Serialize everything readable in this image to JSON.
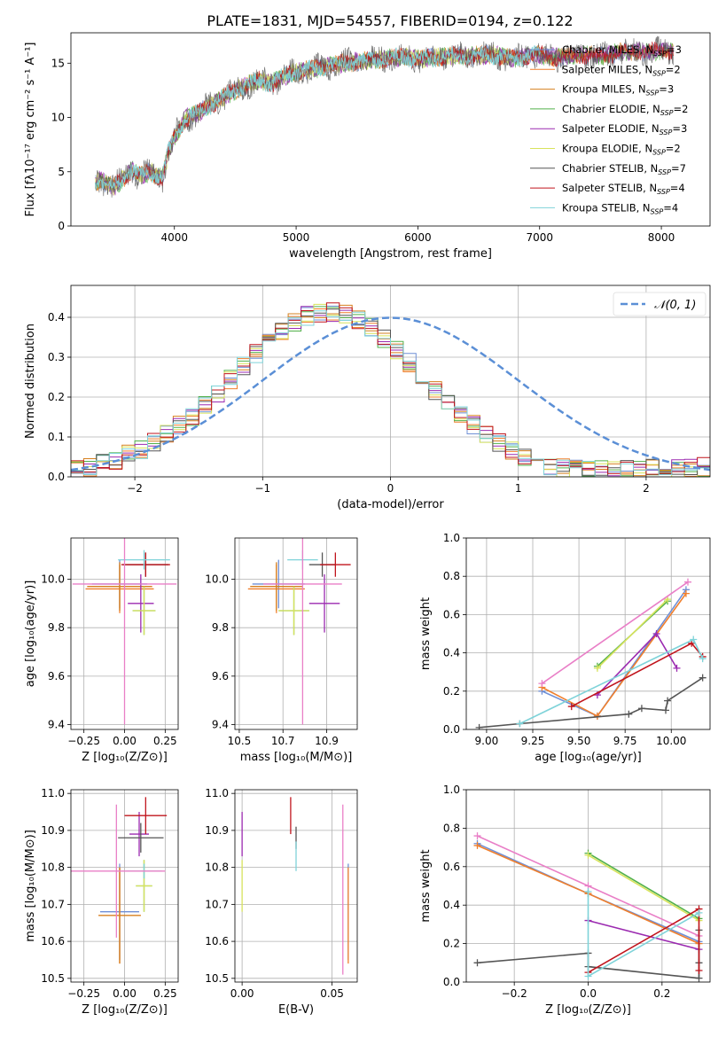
{
  "figure": {
    "title": "PLATE=1831, MJD=54557, FIBERID=0194, z=0.122"
  },
  "colors": {
    "Chabrier MILES": "#6f8fd6",
    "Salpeter MILES": "#f07f2c",
    "Kroupa MILES": "#d6801f",
    "Chabrier ELODIE": "#52b04a",
    "Salpeter ELODIE": "#9b2ab0",
    "Kroupa ELODIE": "#d8e35c",
    "Chabrier STELIB": "#555555",
    "Salpeter STELIB": "#c0141c",
    "Kroupa STELIB": "#7fd3d9",
    "extra": "#e97fc7",
    "normal": "#5b8fd6"
  },
  "chart_data": [
    {
      "id": "spectrum",
      "type": "line",
      "xlabel": "wavelength [Angstrom, rest frame]",
      "ylabel": "Flux [fλ10⁻¹⁷ erg cm⁻² s⁻¹ A⁻¹]",
      "xlim": [
        3150,
        8400
      ],
      "ylim": [
        0,
        17.8
      ],
      "xticks": [
        4000,
        5000,
        6000,
        7000,
        8000
      ],
      "yticks": [
        0,
        5,
        10,
        15
      ],
      "x": [
        3350,
        3400,
        3500,
        3600,
        3650,
        3700,
        3800,
        3900,
        3950,
        4000,
        4100,
        4200,
        4300,
        4400,
        4500,
        4600,
        4700,
        4800,
        4900,
        5000,
        5100,
        5200,
        5300,
        5400,
        5500,
        5600,
        5700,
        5800,
        5900,
        6000,
        6100,
        6200,
        6300,
        6400,
        6500,
        6600,
        6700,
        6800,
        6900,
        7000,
        7100,
        7200,
        7300,
        7400,
        7500,
        7600,
        7700,
        7800,
        7900,
        8000,
        8100
      ],
      "y": [
        4.0,
        4.2,
        3.6,
        4.6,
        5.2,
        4.7,
        5.0,
        4.4,
        6.8,
        8.2,
        10.0,
        10.4,
        11.2,
        11.8,
        12.5,
        13.0,
        13.4,
        13.2,
        13.8,
        14.2,
        14.4,
        14.6,
        14.8,
        15.0,
        15.2,
        15.3,
        15.4,
        15.5,
        15.6,
        15.4,
        15.5,
        15.6,
        15.7,
        15.6,
        15.7,
        15.8,
        15.6,
        15.5,
        15.7,
        15.8,
        15.6,
        15.5,
        15.8,
        15.7,
        15.6,
        15.9,
        16.0,
        16.1,
        16.0,
        16.2,
        16.0
      ],
      "series": [
        {
          "name": "Chabrier MILES, N_SSP=3"
        },
        {
          "name": "Salpeter MILES, N_SSP=2"
        },
        {
          "name": "Kroupa MILES, N_SSP=3"
        },
        {
          "name": "Chabrier ELODIE, N_SSP=2"
        },
        {
          "name": "Salpeter ELODIE, N_SSP=3"
        },
        {
          "name": "Kroupa ELODIE, N_SSP=2"
        },
        {
          "name": "Chabrier STELIB, N_SSP=7"
        },
        {
          "name": "Salpeter STELIB, N_SSP=4"
        },
        {
          "name": "Kroupa STELIB, N_SSP=4"
        }
      ],
      "legend_labels": [
        {
          "pre": "Chabrier MILES, N",
          "sub": "SSP",
          "post": "=3"
        },
        {
          "pre": "Salpeter MILES, N",
          "sub": "SSP",
          "post": "=2"
        },
        {
          "pre": "Kroupa MILES, N",
          "sub": "SSP",
          "post": "=3"
        },
        {
          "pre": "Chabrier ELODIE, N",
          "sub": "SSP",
          "post": "=2"
        },
        {
          "pre": "Salpeter ELODIE, N",
          "sub": "SSP",
          "post": "=3"
        },
        {
          "pre": "Kroupa ELODIE, N",
          "sub": "SSP",
          "post": "=2"
        },
        {
          "pre": "Chabrier STELIB, N",
          "sub": "SSP",
          "post": "=7"
        },
        {
          "pre": "Salpeter STELIB, N",
          "sub": "SSP",
          "post": "=4"
        },
        {
          "pre": "Kroupa STELIB, N",
          "sub": "SSP",
          "post": "=4"
        }
      ],
      "legend": "top-right",
      "grid": false
    },
    {
      "id": "residuals",
      "type": "histogram",
      "xlabel": "(data-model)/error",
      "ylabel": "Normed distribution",
      "xlim": [
        -2.5,
        2.5
      ],
      "ylim": [
        0,
        0.48
      ],
      "xticks": [
        -2,
        -1,
        0,
        1,
        2
      ],
      "yticks": [
        0.0,
        0.1,
        0.2,
        0.3,
        0.4
      ],
      "bin_width": 0.1,
      "bin_start": -2.5,
      "density": [
        0.022,
        0.027,
        0.034,
        0.043,
        0.055,
        0.069,
        0.086,
        0.106,
        0.128,
        0.153,
        0.181,
        0.211,
        0.243,
        0.276,
        0.308,
        0.339,
        0.365,
        0.387,
        0.403,
        0.412,
        0.413,
        0.407,
        0.394,
        0.374,
        0.349,
        0.319,
        0.286,
        0.253,
        0.219,
        0.186,
        0.157,
        0.129,
        0.105,
        0.083,
        0.066,
        0.051,
        0.039,
        0.03,
        0.025,
        0.022,
        0.02,
        0.019,
        0.018,
        0.018,
        0.019,
        0.02,
        0.021,
        0.022,
        0.023,
        0.024
      ],
      "normal_label": "𝒩(0, 1)",
      "legend": "top-right",
      "grid": true
    },
    {
      "id": "age_vs_Z",
      "type": "scatter",
      "xlabel": "Z [log₁₀(Z/Z⊙)]",
      "ylabel": "age  [log₁₀(age/yr)]",
      "xlim": [
        -0.33,
        0.33
      ],
      "ylim": [
        9.38,
        10.17
      ],
      "xticks": [
        -0.25,
        0.0,
        0.25
      ],
      "yticks": [
        9.4,
        9.6,
        9.8,
        10.0
      ],
      "points": [
        {
          "series": "Chabrier MILES",
          "x": -0.03,
          "y": 9.98,
          "xerr": 0.17,
          "yerr": 0.1
        },
        {
          "series": "Salpeter MILES",
          "x": -0.03,
          "y": 9.96,
          "xerr": 0.21,
          "yerr": 0.1
        },
        {
          "series": "Kroupa MILES",
          "x": -0.03,
          "y": 9.97,
          "xerr": 0.2,
          "yerr": 0.1
        },
        {
          "series": "Chabrier ELODIE",
          "x": 0.12,
          "y": 9.87,
          "xerr": 0.07,
          "yerr": 0.1
        },
        {
          "series": "Salpeter ELODIE",
          "x": 0.1,
          "y": 9.9,
          "xerr": 0.08,
          "yerr": 0.12
        },
        {
          "series": "Kroupa ELODIE",
          "x": 0.12,
          "y": 9.87,
          "xerr": 0.07,
          "yerr": 0.1
        },
        {
          "series": "Chabrier STELIB",
          "x": 0.13,
          "y": 10.06,
          "xerr": 0.14,
          "yerr": 0.05
        },
        {
          "series": "Salpeter STELIB",
          "x": 0.13,
          "y": 10.06,
          "xerr": 0.15,
          "yerr": 0.05
        },
        {
          "series": "Kroupa STELIB",
          "x": 0.12,
          "y": 10.08,
          "xerr": 0.16,
          "yerr": 0.04
        },
        {
          "series": "extra",
          "x": 0.0,
          "y": 9.98,
          "xerr": 0.32,
          "yerr": 0.58
        }
      ],
      "grid": true
    },
    {
      "id": "age_vs_mass",
      "type": "scatter",
      "xlabel": "mass [log₁₀(M/M⊙)]",
      "ylabel": "",
      "xlim": [
        10.48,
        11.04
      ],
      "ylim": [
        9.38,
        10.17
      ],
      "xticks": [
        10.5,
        10.7,
        10.9
      ],
      "yticks": [
        9.4,
        9.6,
        9.8,
        10.0
      ],
      "points": [
        {
          "series": "Chabrier MILES",
          "x": 10.68,
          "y": 9.98,
          "xerr": 0.12,
          "yerr": 0.1
        },
        {
          "series": "Salpeter MILES",
          "x": 10.67,
          "y": 9.96,
          "xerr": 0.13,
          "yerr": 0.1
        },
        {
          "series": "Kroupa MILES",
          "x": 10.67,
          "y": 9.97,
          "xerr": 0.12,
          "yerr": 0.1
        },
        {
          "series": "Chabrier ELODIE",
          "x": 10.75,
          "y": 9.87,
          "xerr": 0.07,
          "yerr": 0.1
        },
        {
          "series": "Salpeter ELODIE",
          "x": 10.89,
          "y": 9.9,
          "xerr": 0.07,
          "yerr": 0.12
        },
        {
          "series": "Kroupa ELODIE",
          "x": 10.75,
          "y": 9.87,
          "xerr": 0.07,
          "yerr": 0.1
        },
        {
          "series": "Chabrier STELIB",
          "x": 10.88,
          "y": 10.06,
          "xerr": 0.06,
          "yerr": 0.05
        },
        {
          "series": "Salpeter STELIB",
          "x": 10.94,
          "y": 10.06,
          "xerr": 0.07,
          "yerr": 0.05
        },
        {
          "series": "Kroupa STELIB",
          "x": 10.79,
          "y": 10.08,
          "xerr": 0.07,
          "yerr": 0.04
        },
        {
          "series": "extra",
          "x": 10.79,
          "y": 9.98,
          "xerr": 0.18,
          "yerr": 0.58
        }
      ],
      "grid": true
    },
    {
      "id": "mass_weight_vs_age",
      "type": "line",
      "xlabel": "age  [log₁₀(age/yr)]",
      "ylabel": "mass weight",
      "xlim": [
        8.89,
        10.21
      ],
      "ylim": [
        0,
        1.0
      ],
      "xticks": [
        9.0,
        9.25,
        9.5,
        9.75,
        10.0
      ],
      "yticks": [
        0.0,
        0.2,
        0.4,
        0.6,
        0.8,
        1.0
      ],
      "series": [
        {
          "series": "Chabrier MILES",
          "x": [
            9.3,
            9.6,
            10.08
          ],
          "y": [
            0.2,
            0.07,
            0.73
          ]
        },
        {
          "series": "Salpeter MILES",
          "x": [
            9.3,
            9.6,
            10.08
          ],
          "y": [
            0.22,
            0.07,
            0.71
          ]
        },
        {
          "series": "Chabrier ELODIE",
          "x": [
            9.6,
            9.98
          ],
          "y": [
            0.33,
            0.67
          ]
        },
        {
          "series": "Kroupa ELODIE",
          "x": [
            9.6,
            9.98
          ],
          "y": [
            0.32,
            0.68
          ]
        },
        {
          "series": "Salpeter ELODIE",
          "x": [
            9.6,
            9.92,
            10.03
          ],
          "y": [
            0.18,
            0.5,
            0.32
          ]
        },
        {
          "series": "Chabrier STELIB",
          "x": [
            8.96,
            9.18,
            9.77,
            9.84,
            9.97,
            9.98,
            10.17
          ],
          "y": [
            0.01,
            0.03,
            0.08,
            0.11,
            0.1,
            0.15,
            0.27
          ]
        },
        {
          "series": "Salpeter STELIB",
          "x": [
            9.46,
            10.11,
            10.17
          ],
          "y": [
            0.12,
            0.45,
            0.38
          ]
        },
        {
          "series": "Kroupa STELIB",
          "x": [
            9.18,
            10.12,
            10.17
          ],
          "y": [
            0.03,
            0.47,
            0.37
          ]
        },
        {
          "series": "extra",
          "x": [
            9.3,
            10.09
          ],
          "y": [
            0.24,
            0.77
          ]
        }
      ],
      "grid": true
    },
    {
      "id": "mass_vs_Z",
      "type": "scatter",
      "xlabel": "Z [log₁₀(Z/Z⊙)]",
      "ylabel": "mass [log₁₀(M/M⊙)]",
      "xlim": [
        -0.33,
        0.33
      ],
      "ylim": [
        10.49,
        11.01
      ],
      "xticks": [
        -0.25,
        0.0,
        0.25
      ],
      "yticks": [
        10.5,
        10.6,
        10.7,
        10.8,
        10.9,
        11.0
      ],
      "points": [
        {
          "series": "Chabrier MILES",
          "x": -0.03,
          "y": 10.68,
          "xerr": 0.12,
          "yerr": 0.13
        },
        {
          "series": "Salpeter MILES",
          "x": -0.03,
          "y": 10.67,
          "xerr": 0.13,
          "yerr": 0.13
        },
        {
          "series": "Kroupa MILES",
          "x": -0.03,
          "y": 10.67,
          "xerr": 0.13,
          "yerr": 0.13
        },
        {
          "series": "Chabrier ELODIE",
          "x": 0.12,
          "y": 10.75,
          "xerr": 0.05,
          "yerr": 0.07
        },
        {
          "series": "Salpeter ELODIE",
          "x": 0.09,
          "y": 10.89,
          "xerr": 0.06,
          "yerr": 0.06
        },
        {
          "series": "Kroupa ELODIE",
          "x": 0.12,
          "y": 10.75,
          "xerr": 0.05,
          "yerr": 0.07
        },
        {
          "series": "Chabrier STELIB",
          "x": 0.1,
          "y": 10.88,
          "xerr": 0.14,
          "yerr": 0.04
        },
        {
          "series": "Salpeter STELIB",
          "x": 0.13,
          "y": 10.94,
          "xerr": 0.13,
          "yerr": 0.05
        },
        {
          "series": "Kroupa STELIB",
          "x": 0.12,
          "y": 10.79,
          "xerr": 0.11,
          "yerr": 0.02
        },
        {
          "series": "extra",
          "x": -0.05,
          "y": 10.79,
          "xerr": 0.3,
          "yerr": 0.18
        }
      ],
      "grid": true
    },
    {
      "id": "mass_vs_ebv",
      "type": "scatter",
      "xlabel": "E(B-V)",
      "ylabel": "",
      "xlim": [
        -0.004,
        0.064
      ],
      "ylim": [
        10.49,
        11.01
      ],
      "xticks": [
        0.0,
        0.05
      ],
      "yticks": [
        10.5,
        10.6,
        10.7,
        10.8,
        10.9,
        11.0
      ],
      "points": [
        {
          "series": "Chabrier MILES",
          "x": 0.059,
          "y": 10.68,
          "xerr": 0.0,
          "yerr": 0.13
        },
        {
          "series": "Salpeter MILES",
          "x": 0.059,
          "y": 10.67,
          "xerr": 0.0,
          "yerr": 0.13
        },
        {
          "series": "Kroupa ELODIE",
          "x": 0.0,
          "y": 10.75,
          "xerr": 0.0,
          "yerr": 0.07
        },
        {
          "series": "Salpeter ELODIE",
          "x": 0.0,
          "y": 10.89,
          "xerr": 0.0,
          "yerr": 0.06
        },
        {
          "series": "Chabrier STELIB",
          "x": 0.03,
          "y": 10.88,
          "xerr": 0.0,
          "yerr": 0.03
        },
        {
          "series": "Salpeter STELIB",
          "x": 0.027,
          "y": 10.94,
          "xerr": 0.0,
          "yerr": 0.05
        },
        {
          "series": "Kroupa STELIB",
          "x": 0.03,
          "y": 10.83,
          "xerr": 0.0,
          "yerr": 0.04
        },
        {
          "series": "extra",
          "x": 0.056,
          "y": 10.74,
          "xerr": 0.0,
          "yerr": 0.23
        }
      ],
      "grid": true
    },
    {
      "id": "mass_weight_vs_Z",
      "type": "line",
      "xlabel": "Z [log₁₀(Z/Z⊙)]",
      "ylabel": "mass weight",
      "xlim": [
        -0.33,
        0.33
      ],
      "ylim": [
        0,
        1.0
      ],
      "xticks": [
        -0.2,
        0.0,
        0.2
      ],
      "yticks": [
        0.0,
        0.2,
        0.4,
        0.6,
        0.8,
        1.0
      ],
      "series": [
        {
          "series": "Chabrier MILES",
          "x": [
            -0.3,
            0.0,
            0.3
          ],
          "y": [
            0.72,
            0.46,
            0.21
          ]
        },
        {
          "series": "Salpeter MILES",
          "x": [
            -0.3,
            0.0,
            0.3
          ],
          "y": [
            0.71,
            0.46,
            0.2
          ]
        },
        {
          "series": "extra",
          "x": [
            -0.3,
            0.0,
            0.3
          ],
          "y": [
            0.76,
            0.5,
            0.24
          ]
        },
        {
          "series": "Chabrier ELODIE",
          "x": [
            0.0,
            0.3
          ],
          "y": [
            0.67,
            0.33
          ]
        },
        {
          "series": "Kroupa ELODIE",
          "x": [
            0.0,
            0.3
          ],
          "y": [
            0.66,
            0.32
          ]
        },
        {
          "series": "Salpeter ELODIE",
          "x": [
            0.0,
            0.3
          ],
          "y": [
            0.32,
            0.17
          ]
        },
        {
          "series": "Chabrier STELIB",
          "x": [
            -0.3,
            0.0,
            0.0,
            0.3,
            0.3,
            0.3
          ],
          "y": [
            0.1,
            0.15,
            0.08,
            0.02,
            0.27,
            0.1
          ]
        },
        {
          "series": "Salpeter STELIB",
          "x": [
            0.0,
            0.3,
            0.3
          ],
          "y": [
            0.05,
            0.38,
            0.06
          ]
        },
        {
          "series": "Kroupa STELIB",
          "x": [
            0.0,
            0.0,
            0.3
          ],
          "y": [
            0.47,
            0.03,
            0.36
          ]
        }
      ],
      "grid": true
    }
  ]
}
